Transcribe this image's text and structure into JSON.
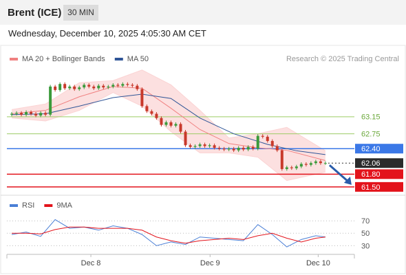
{
  "header": {
    "title": "Brent (ICE)",
    "interval": "30 MIN",
    "timestamp": "Wednesday, December 10, 2025 4:05:30 AM CET"
  },
  "credit": "Research © 2025 Trading Central",
  "chart_data": [
    {
      "type": "candlestick",
      "xlim": [
        0,
        72
      ],
      "ylim": [
        61.32,
        64.36
      ],
      "up_color": "#3a9a3a",
      "down_color": "#c8392b",
      "x": [
        1,
        2,
        3,
        4,
        5,
        6,
        7,
        8,
        9,
        10,
        11,
        12,
        13,
        14,
        15,
        16,
        17,
        18,
        19,
        20,
        21,
        22,
        23,
        24,
        25,
        26,
        27,
        28,
        29,
        30,
        31,
        32,
        33,
        34,
        35,
        36,
        37,
        38,
        39,
        40,
        41,
        42,
        43,
        44,
        45,
        46,
        47,
        48,
        49,
        50,
        51,
        52,
        53,
        54,
        55,
        56,
        57,
        58,
        59,
        60,
        61,
        62,
        63,
        64,
        65,
        66
      ],
      "open": [
        63.2,
        63.22,
        63.24,
        63.2,
        63.26,
        63.22,
        63.18,
        63.24,
        63.2,
        63.86,
        63.78,
        63.92,
        63.82,
        63.86,
        63.8,
        63.84,
        63.9,
        63.86,
        63.82,
        63.88,
        63.84,
        63.86,
        63.9,
        63.88,
        63.92,
        63.9,
        63.88,
        63.8,
        63.4,
        63.28,
        63.22,
        63.12,
        62.96,
        63.02,
        62.94,
        62.98,
        62.8,
        62.48,
        62.44,
        62.46,
        62.5,
        62.46,
        62.48,
        62.42,
        62.4,
        62.38,
        62.4,
        62.36,
        62.42,
        62.38,
        62.44,
        62.4,
        62.7,
        62.68,
        62.58,
        62.46,
        62.36,
        61.92,
        61.96,
        61.94,
        61.98,
        62.04,
        62.02,
        62.06,
        62.1,
        62.06
      ],
      "high": [
        63.26,
        63.28,
        63.28,
        63.3,
        63.3,
        63.26,
        63.28,
        63.28,
        63.9,
        63.9,
        63.96,
        63.96,
        63.9,
        63.9,
        63.88,
        63.94,
        63.94,
        63.9,
        63.92,
        63.92,
        63.9,
        63.94,
        63.94,
        63.96,
        63.96,
        63.94,
        63.92,
        63.84,
        63.44,
        63.32,
        63.26,
        63.16,
        63.06,
        63.06,
        63.02,
        63.02,
        62.84,
        62.52,
        62.5,
        62.54,
        62.54,
        62.52,
        62.52,
        62.46,
        62.44,
        62.44,
        62.44,
        62.46,
        62.46,
        62.48,
        62.48,
        62.74,
        62.74,
        62.72,
        62.62,
        62.5,
        62.4,
        62.0,
        62.0,
        62.02,
        62.08,
        62.08,
        62.1,
        62.14,
        62.14,
        62.1
      ],
      "low": [
        63.16,
        63.18,
        63.16,
        63.16,
        63.18,
        63.14,
        63.14,
        63.16,
        63.16,
        63.74,
        63.74,
        63.78,
        63.78,
        63.76,
        63.76,
        63.8,
        63.82,
        63.78,
        63.78,
        63.8,
        63.8,
        63.82,
        63.84,
        63.84,
        63.86,
        63.84,
        63.76,
        63.36,
        63.24,
        63.18,
        63.08,
        62.92,
        62.92,
        62.9,
        62.9,
        62.76,
        62.44,
        62.4,
        62.4,
        62.42,
        62.42,
        62.42,
        62.38,
        62.36,
        62.34,
        62.34,
        62.32,
        62.32,
        62.34,
        62.34,
        62.36,
        62.36,
        62.64,
        62.54,
        62.42,
        62.32,
        61.88,
        61.88,
        61.9,
        61.9,
        61.94,
        61.98,
        61.98,
        62.02,
        62.02,
        62.02
      ],
      "close": [
        63.22,
        63.24,
        63.2,
        63.26,
        63.22,
        63.18,
        63.24,
        63.2,
        63.86,
        63.78,
        63.92,
        63.82,
        63.86,
        63.8,
        63.84,
        63.9,
        63.86,
        63.82,
        63.88,
        63.84,
        63.86,
        63.9,
        63.88,
        63.92,
        63.9,
        63.88,
        63.8,
        63.4,
        63.28,
        63.22,
        63.12,
        62.96,
        63.02,
        62.94,
        62.98,
        62.8,
        62.48,
        62.44,
        62.46,
        62.5,
        62.46,
        62.48,
        62.42,
        62.4,
        62.38,
        62.4,
        62.36,
        62.42,
        62.38,
        62.44,
        62.4,
        62.7,
        62.68,
        62.58,
        62.46,
        62.36,
        61.92,
        61.96,
        61.94,
        61.98,
        62.04,
        62.02,
        62.06,
        62.1,
        62.06,
        62.06
      ],
      "series": [
        {
          "name": "MA 20 + Bollinger Bands",
          "color": "#f08080",
          "band_color": "#fbd3d3",
          "x": [
            1,
            8,
            15,
            22,
            28,
            34,
            40,
            46,
            52,
            58,
            66
          ],
          "values": [
            63.22,
            63.3,
            63.62,
            63.86,
            63.82,
            63.35,
            62.85,
            62.52,
            62.42,
            62.36,
            62.12
          ],
          "upper": [
            63.32,
            63.45,
            63.95,
            64.0,
            64.25,
            63.9,
            63.3,
            62.65,
            62.75,
            62.9,
            62.35
          ],
          "lower": [
            63.12,
            63.05,
            63.3,
            63.72,
            63.4,
            62.8,
            62.3,
            62.3,
            62.2,
            61.65,
            61.85
          ]
        },
        {
          "name": "MA 50",
          "color": "#2f5597",
          "x": [
            1,
            8,
            15,
            22,
            28,
            34,
            40,
            47,
            54,
            60,
            66
          ],
          "values": [
            63.2,
            63.22,
            63.4,
            63.6,
            63.68,
            63.58,
            63.12,
            62.75,
            62.5,
            62.35,
            62.26
          ]
        }
      ],
      "levels": [
        {
          "value": 63.15,
          "color": "#9ccc65",
          "boxed": false
        },
        {
          "value": 62.75,
          "color": "#9ccc65",
          "boxed": false
        },
        {
          "value": 62.4,
          "label": "62.40",
          "color": "#3b78e7",
          "boxed": true
        },
        {
          "value": 62.06,
          "color": "#2b2b2b",
          "boxed": true,
          "dotted": true
        },
        {
          "value": 61.8,
          "label": "61.80",
          "color": "#e3131b",
          "boxed": true
        },
        {
          "value": 61.5,
          "label": "61.50",
          "color": "#e3131b",
          "boxed": true
        }
      ],
      "arrow_color": "#2a5caa"
    },
    {
      "type": "line",
      "xlim": [
        0,
        72
      ],
      "ylim": [
        16,
        88
      ],
      "yticks": [
        30,
        50,
        70
      ],
      "grid": true,
      "xticks": [
        {
          "value": 17.4,
          "label": "Dec 8"
        },
        {
          "value": 42.1,
          "label": "Dec 9"
        },
        {
          "value": 64.5,
          "label": "Dec 10"
        }
      ],
      "series": [
        {
          "name": "RSI",
          "color": "#4a7fd6",
          "x": [
            1,
            4,
            7,
            10,
            13,
            16,
            19,
            22,
            25,
            28,
            31,
            34,
            37,
            40,
            43,
            46,
            49,
            52,
            55,
            58,
            61,
            64,
            66
          ],
          "values": [
            48,
            52,
            45,
            72,
            58,
            60,
            55,
            62,
            58,
            48,
            30,
            36,
            32,
            44,
            42,
            40,
            38,
            64,
            48,
            28,
            40,
            46,
            44
          ]
        },
        {
          "name": "9MA",
          "color": "#e3131b",
          "x": [
            1,
            4,
            7,
            10,
            13,
            16,
            19,
            22,
            25,
            28,
            31,
            34,
            37,
            40,
            43,
            46,
            49,
            52,
            55,
            58,
            61,
            64,
            66
          ],
          "values": [
            50,
            50,
            49,
            56,
            60,
            60,
            58,
            58,
            58,
            55,
            44,
            38,
            34,
            38,
            40,
            42,
            40,
            46,
            50,
            42,
            36,
            42,
            44
          ]
        }
      ]
    }
  ]
}
